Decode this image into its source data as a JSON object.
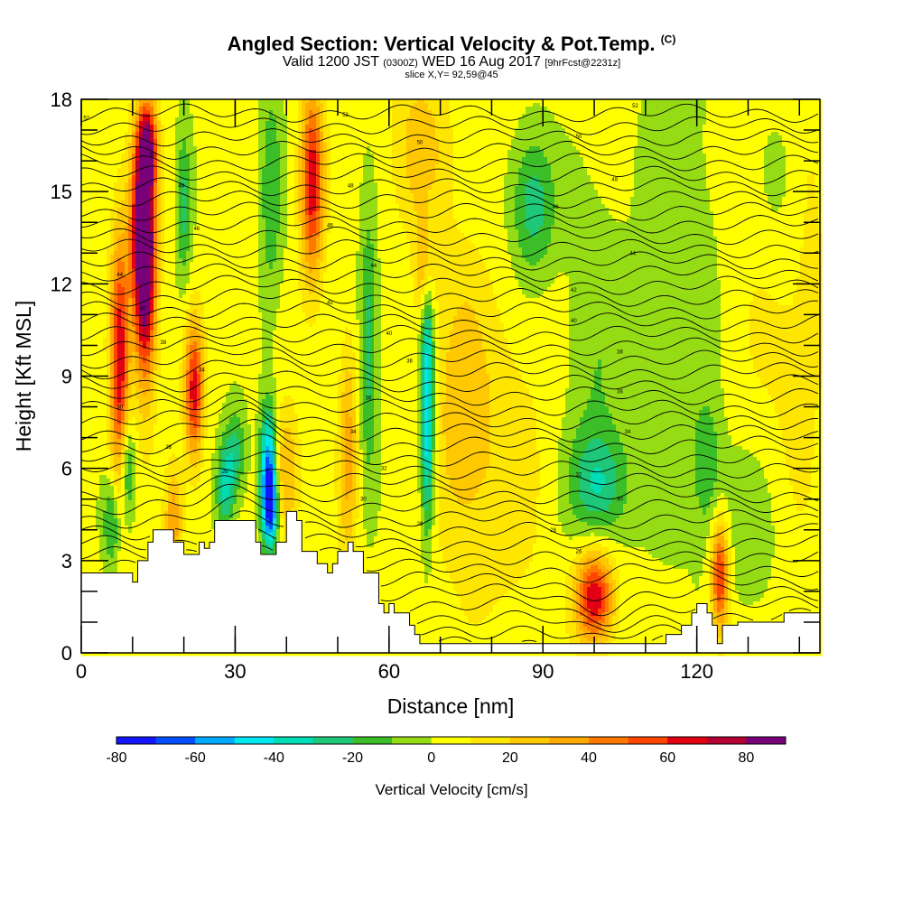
{
  "header": {
    "title_main": "Angled Section: Vertical Velocity & Pot.Temp.",
    "title_tag": "(C)",
    "valid_pre": "Valid 1200 JST",
    "valid_z": "(0300Z)",
    "valid_date": "WED 16 Aug 2017",
    "valid_fcst": "[9hrFcst@2231z]",
    "slice": "slice X,Y= 92,59@45"
  },
  "chart_data": {
    "type": "heatmap",
    "xlabel": "Distance [nm]",
    "ylabel": "Height [Kft MSL]",
    "xlim": [
      0,
      144
    ],
    "ylim": [
      0,
      18
    ],
    "x_ticks": [
      0,
      30,
      60,
      90,
      120
    ],
    "y_ticks": [
      0,
      3,
      6,
      9,
      12,
      15,
      18
    ],
    "colorbar": {
      "label": "Vertical Velocity [cm/s]",
      "range": [
        -80,
        90
      ],
      "ticks": [
        -80,
        -60,
        -40,
        -20,
        0,
        20,
        40,
        60,
        80
      ],
      "bins": [
        {
          "from": -80,
          "to": -70,
          "color": "#1414ff"
        },
        {
          "from": -70,
          "to": -60,
          "color": "#0050ff"
        },
        {
          "from": -60,
          "to": -50,
          "color": "#00aaff"
        },
        {
          "from": -50,
          "to": -40,
          "color": "#00e6f0"
        },
        {
          "from": -40,
          "to": -30,
          "color": "#00dcb4"
        },
        {
          "from": -30,
          "to": -20,
          "color": "#1ec878"
        },
        {
          "from": -20,
          "to": -10,
          "color": "#3cbe28"
        },
        {
          "from": -10,
          "to": 0,
          "color": "#96dc14"
        },
        {
          "from": 0,
          "to": 10,
          "color": "#ffff00"
        },
        {
          "from": 10,
          "to": 20,
          "color": "#ffe600"
        },
        {
          "from": 20,
          "to": 30,
          "color": "#ffc800"
        },
        {
          "from": 30,
          "to": 40,
          "color": "#ffaa00"
        },
        {
          "from": 40,
          "to": 50,
          "color": "#ff7800"
        },
        {
          "from": 50,
          "to": 60,
          "color": "#ff4600"
        },
        {
          "from": 60,
          "to": 70,
          "color": "#e10014"
        },
        {
          "from": 70,
          "to": 80,
          "color": "#b40032"
        },
        {
          "from": 80,
          "to": 90,
          "color": "#780078"
        }
      ]
    },
    "velocity_features": [
      {
        "x": 7.5,
        "z": 9.5,
        "sx": 1.3,
        "sz": 3.0,
        "w": 65
      },
      {
        "x": 12,
        "z": 14.0,
        "sx": 1.6,
        "sz": 2.2,
        "w": 88
      },
      {
        "x": 12.5,
        "z": 11.5,
        "sx": 1.5,
        "sz": 2.5,
        "w": 55
      },
      {
        "x": 13,
        "z": 16.5,
        "sx": 1.3,
        "sz": 1.0,
        "w": 55
      },
      {
        "x": 22,
        "z": 8.5,
        "sx": 1.3,
        "sz": 1.6,
        "w": 62
      },
      {
        "x": 45,
        "z": 15.3,
        "sx": 1.6,
        "sz": 2.2,
        "w": 65
      },
      {
        "x": 18,
        "z": 4.3,
        "sx": 1.2,
        "sz": 1.2,
        "w": 35
      },
      {
        "x": 40,
        "z": 5.8,
        "sx": 1.8,
        "sz": 1.5,
        "w": 30
      },
      {
        "x": 52,
        "z": 6.5,
        "sx": 1.3,
        "sz": 2.5,
        "w": 32
      },
      {
        "x": 66,
        "z": 16.5,
        "sx": 4.0,
        "sz": 2.0,
        "w": 22
      },
      {
        "x": 74,
        "z": 8.0,
        "sx": 4.0,
        "sz": 3.5,
        "w": 22
      },
      {
        "x": 67,
        "z": 12.5,
        "sx": 1.3,
        "sz": 1.2,
        "w": 34
      },
      {
        "x": 100,
        "z": 1.8,
        "sx": 2.6,
        "sz": 1.1,
        "w": 68
      },
      {
        "x": 124.5,
        "z": 2.5,
        "sx": 1.2,
        "sz": 1.3,
        "w": 60
      },
      {
        "x": 83,
        "z": 6.0,
        "sx": 6.0,
        "sz": 4.0,
        "w": 12
      },
      {
        "x": 138,
        "z": 12.0,
        "sx": 8.0,
        "sz": 8.0,
        "w": 10
      },
      {
        "x": 9,
        "z": 6.0,
        "sx": 1.0,
        "sz": 1.2,
        "w": -32
      },
      {
        "x": 6,
        "z": 4.2,
        "sx": 1.2,
        "sz": 1.0,
        "w": -28
      },
      {
        "x": 20,
        "z": 14.5,
        "sx": 1.0,
        "sz": 1.8,
        "w": -25
      },
      {
        "x": 28,
        "z": 5.3,
        "sx": 1.2,
        "sz": 1.0,
        "w": -32
      },
      {
        "x": 30,
        "z": 6.5,
        "sx": 1.5,
        "sz": 1.0,
        "w": -28
      },
      {
        "x": 36.5,
        "z": 5.8,
        "sx": 1.1,
        "sz": 1.5,
        "w": -68
      },
      {
        "x": 37,
        "z": 4.7,
        "sx": 1.0,
        "sz": 0.8,
        "w": -50
      },
      {
        "x": 37,
        "z": 15.0,
        "sx": 1.5,
        "sz": 2.5,
        "w": -22
      },
      {
        "x": 56,
        "z": 10.0,
        "sx": 1.2,
        "sz": 3.0,
        "w": -28
      },
      {
        "x": 67.5,
        "z": 9.5,
        "sx": 0.9,
        "sz": 2.5,
        "w": -48
      },
      {
        "x": 67.5,
        "z": 6.0,
        "sx": 0.9,
        "sz": 1.8,
        "w": -30
      },
      {
        "x": 88,
        "z": 14.5,
        "sx": 3.0,
        "sz": 1.6,
        "w": -30
      },
      {
        "x": 101,
        "z": 5.5,
        "sx": 4.0,
        "sz": 1.2,
        "w": -28
      },
      {
        "x": 100,
        "z": 9.0,
        "sx": 4.0,
        "sz": 4.0,
        "w": -12
      },
      {
        "x": 122,
        "z": 6.0,
        "sx": 2.0,
        "sz": 1.5,
        "w": -20
      },
      {
        "x": 117,
        "z": 12.0,
        "sx": 6.0,
        "sz": 6.0,
        "w": -10
      },
      {
        "x": 136,
        "z": 15.5,
        "sx": 3.0,
        "sz": 2.0,
        "w": -15
      },
      {
        "x": 131,
        "z": 4.0,
        "sx": 4.0,
        "sz": 2.0,
        "w": -14
      }
    ],
    "terrain_kft": [
      [
        0,
        2.6
      ],
      [
        10,
        2.6
      ],
      [
        10,
        2.3
      ],
      [
        11,
        2.3
      ],
      [
        11,
        3.0
      ],
      [
        13,
        3.0
      ],
      [
        13,
        3.6
      ],
      [
        14,
        3.6
      ],
      [
        14,
        4.0
      ],
      [
        18,
        4.0
      ],
      [
        18,
        3.6
      ],
      [
        20,
        3.6
      ],
      [
        20,
        3.2
      ],
      [
        23,
        3.2
      ],
      [
        23,
        3.6
      ],
      [
        24,
        3.6
      ],
      [
        24,
        3.4
      ],
      [
        25,
        3.4
      ],
      [
        25,
        3.6
      ],
      [
        26,
        3.6
      ],
      [
        26,
        4.3
      ],
      [
        34,
        4.3
      ],
      [
        34,
        3.6
      ],
      [
        35,
        3.6
      ],
      [
        35,
        3.2
      ],
      [
        38,
        3.2
      ],
      [
        38,
        3.6
      ],
      [
        40,
        3.6
      ],
      [
        40,
        4.6
      ],
      [
        42,
        4.6
      ],
      [
        42,
        4.3
      ],
      [
        43,
        4.3
      ],
      [
        43,
        3.3
      ],
      [
        46,
        3.3
      ],
      [
        46,
        2.9
      ],
      [
        48,
        2.9
      ],
      [
        48,
        2.6
      ],
      [
        49,
        2.6
      ],
      [
        49,
        2.9
      ],
      [
        50,
        2.9
      ],
      [
        50,
        3.3
      ],
      [
        52,
        3.3
      ],
      [
        52,
        3.6
      ],
      [
        53,
        3.6
      ],
      [
        53,
        3.3
      ],
      [
        55,
        3.3
      ],
      [
        55,
        2.6
      ],
      [
        58,
        2.6
      ],
      [
        58,
        1.6
      ],
      [
        59,
        1.6
      ],
      [
        59,
        1.3
      ],
      [
        60,
        1.3
      ],
      [
        60,
        1.6
      ],
      [
        61,
        1.6
      ],
      [
        61,
        1.3
      ],
      [
        64,
        1.3
      ],
      [
        64,
        0.9
      ],
      [
        65,
        0.9
      ],
      [
        65,
        0.6
      ],
      [
        66,
        0.6
      ],
      [
        66,
        0.3
      ],
      [
        70,
        0.3
      ],
      [
        70,
        0.3
      ],
      [
        110,
        0.3
      ],
      [
        110,
        0.3
      ],
      [
        114,
        0.3
      ],
      [
        114,
        0.6
      ],
      [
        117,
        0.6
      ],
      [
        117,
        0.9
      ],
      [
        119,
        0.9
      ],
      [
        119,
        1.3
      ],
      [
        120,
        1.3
      ],
      [
        120,
        1.6
      ],
      [
        122,
        1.6
      ],
      [
        122,
        1.3
      ],
      [
        123,
        1.3
      ],
      [
        123,
        0.9
      ],
      [
        124,
        0.9
      ],
      [
        124,
        0.3
      ],
      [
        125,
        0.3
      ],
      [
        125,
        0.9
      ],
      [
        128,
        0.9
      ],
      [
        128,
        1.0
      ],
      [
        137,
        1.0
      ],
      [
        137,
        1.3
      ],
      [
        144,
        1.3
      ]
    ],
    "isentrope_labels": [
      {
        "x": 1,
        "z": 17.4,
        "text": "52"
      },
      {
        "x": 14,
        "z": 16.2,
        "text": "50"
      },
      {
        "x": 19.5,
        "z": 15.2,
        "text": "48"
      },
      {
        "x": 22.5,
        "z": 13.8,
        "text": "46"
      },
      {
        "x": 7.5,
        "z": 12.3,
        "text": "44"
      },
      {
        "x": 12,
        "z": 11.2,
        "text": "40"
      },
      {
        "x": 16,
        "z": 10.1,
        "text": "38"
      },
      {
        "x": 23.5,
        "z": 9.2,
        "text": "34"
      },
      {
        "x": 7.5,
        "z": 8.0,
        "text": "30"
      },
      {
        "x": 17,
        "z": 6.7,
        "text": "28"
      },
      {
        "x": 28,
        "z": 5.9,
        "text": "26"
      },
      {
        "x": 51.5,
        "z": 17.5,
        "text": "52"
      },
      {
        "x": 66,
        "z": 16.6,
        "text": "50"
      },
      {
        "x": 52.5,
        "z": 15.2,
        "text": "48"
      },
      {
        "x": 48.5,
        "z": 13.9,
        "text": "46"
      },
      {
        "x": 57,
        "z": 12.6,
        "text": "44"
      },
      {
        "x": 48.5,
        "z": 11.4,
        "text": "42"
      },
      {
        "x": 60,
        "z": 10.4,
        "text": "40"
      },
      {
        "x": 64,
        "z": 9.5,
        "text": "38"
      },
      {
        "x": 56,
        "z": 8.3,
        "text": "36"
      },
      {
        "x": 53,
        "z": 7.2,
        "text": "34"
      },
      {
        "x": 59,
        "z": 6.0,
        "text": "32"
      },
      {
        "x": 55,
        "z": 5.0,
        "text": "30"
      },
      {
        "x": 66,
        "z": 4.2,
        "text": "28"
      },
      {
        "x": 108,
        "z": 17.8,
        "text": "52"
      },
      {
        "x": 97,
        "z": 16.8,
        "text": "50"
      },
      {
        "x": 104,
        "z": 15.4,
        "text": "48"
      },
      {
        "x": 92.5,
        "z": 14.5,
        "text": "46"
      },
      {
        "x": 107.5,
        "z": 13.0,
        "text": "44"
      },
      {
        "x": 96,
        "z": 11.8,
        "text": "42"
      },
      {
        "x": 96,
        "z": 10.8,
        "text": "40"
      },
      {
        "x": 105,
        "z": 9.8,
        "text": "38"
      },
      {
        "x": 105,
        "z": 8.5,
        "text": "36"
      },
      {
        "x": 106.5,
        "z": 7.2,
        "text": "34"
      },
      {
        "x": 97,
        "z": 5.8,
        "text": "32"
      },
      {
        "x": 105,
        "z": 5.0,
        "text": "30"
      },
      {
        "x": 92,
        "z": 4.0,
        "text": "28"
      },
      {
        "x": 97,
        "z": 3.3,
        "text": "26"
      }
    ]
  }
}
